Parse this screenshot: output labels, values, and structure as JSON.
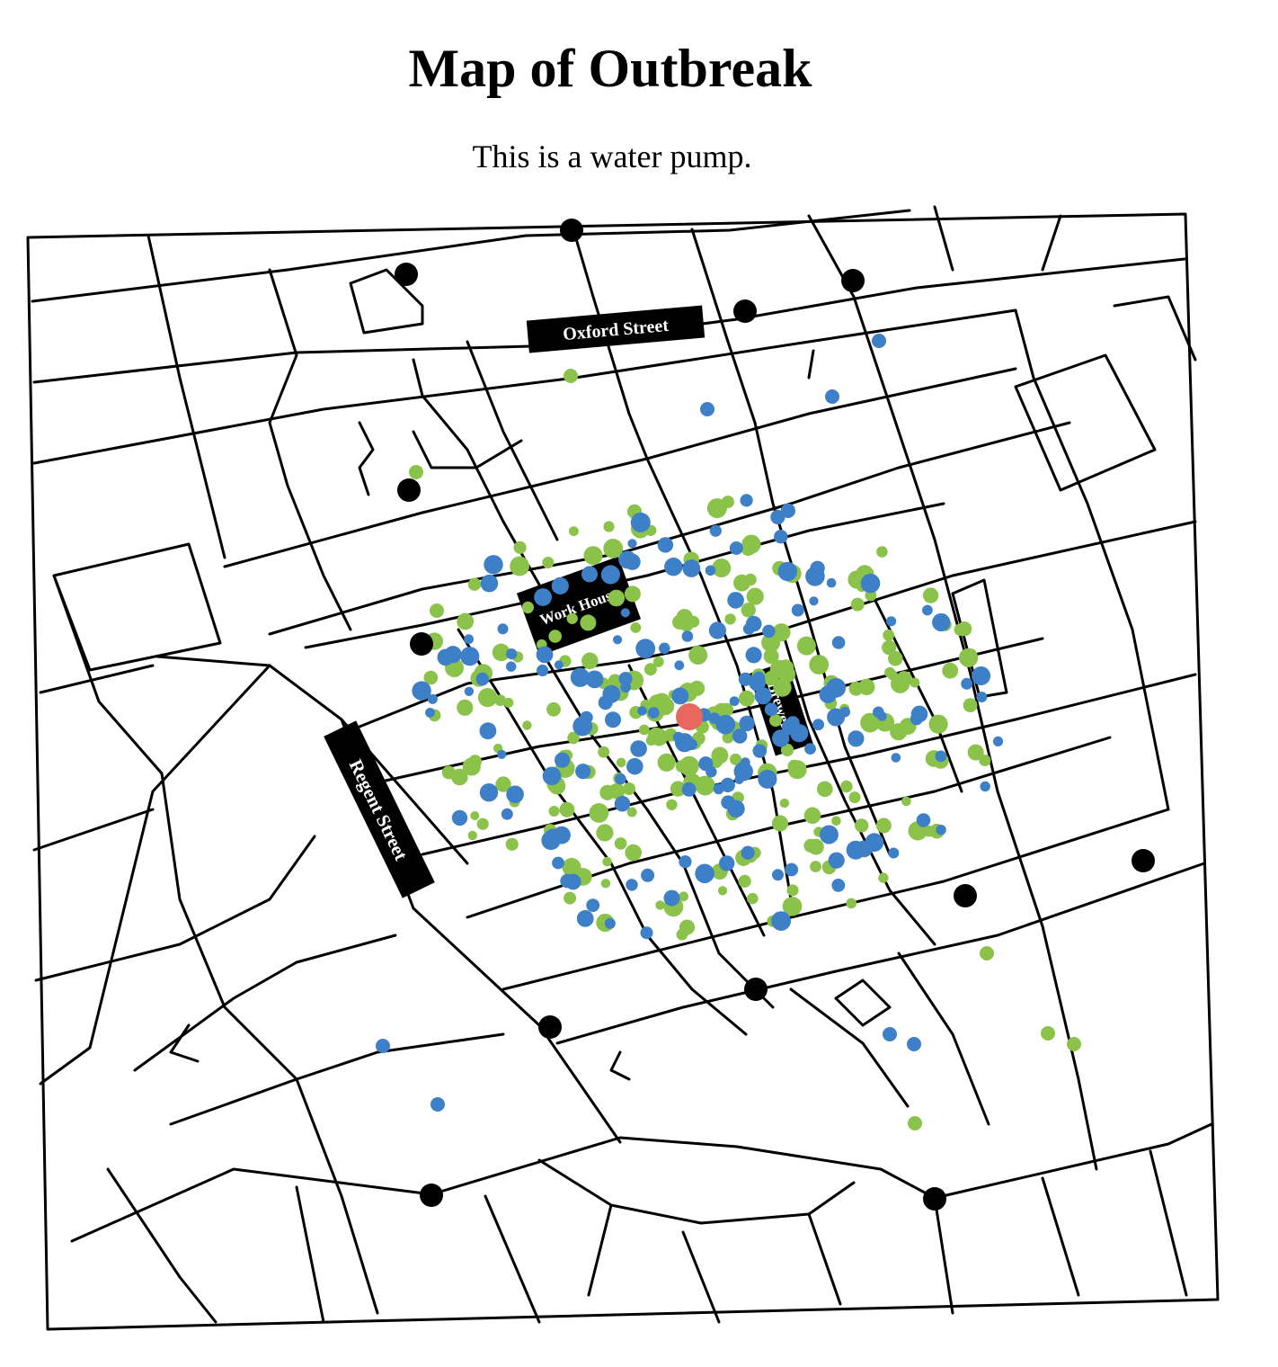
{
  "header": {
    "title": "Map of Outbreak",
    "subtitle": "This is a water pump."
  },
  "map": {
    "street_labels": {
      "oxford": "Oxford Street",
      "regent": "Regent Street"
    },
    "building_labels": {
      "workhouse": "Work House",
      "brewery": "Brewery"
    },
    "colors": {
      "streets": "#000000",
      "pump": "#000000",
      "central_pump": "#e8685f",
      "deaths_series_a": "#3d80c8",
      "deaths_series_b": "#8bc34a"
    },
    "icons": {
      "pump": "circle",
      "death": "circle",
      "central_pump": "circle"
    }
  }
}
